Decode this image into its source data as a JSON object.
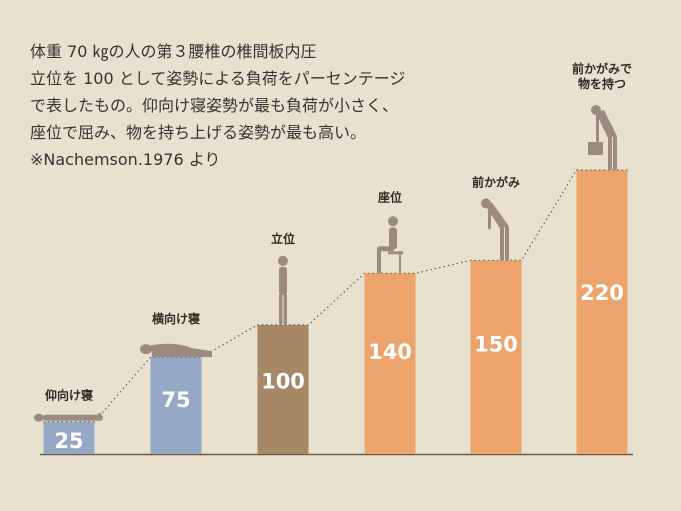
{
  "description": [
    "体重 70 ㎏の人の第３腰椎の椎間板内圧",
    "立位を 100 として姿勢による負荷をパーセンテージ",
    "で表したもの。仰向け寝姿勢が最も負荷が小さく、",
    "座位で屈み、物を持ち上げる姿勢が最も高い。",
    "※Nachemson.1976 より"
  ],
  "chart_data": {
    "type": "bar",
    "categories": [
      "仰向け寝",
      "横向け寝",
      "立位",
      "座位",
      "前かがみ",
      "前かがみで\n物を持つ"
    ],
    "category_lines": [
      [
        "仰向け寝"
      ],
      [
        "横向け寝"
      ],
      [
        "立位"
      ],
      [
        "座位"
      ],
      [
        "前かがみ"
      ],
      [
        "前かがみで",
        "物を持つ"
      ]
    ],
    "values": [
      25,
      75,
      100,
      140,
      150,
      220
    ],
    "value_labels": [
      "25",
      "75",
      "100",
      "140",
      "150",
      "220"
    ],
    "colors": [
      "#95a9c6",
      "#95a9c6",
      "#a68766",
      "#eda36c",
      "#eda36c",
      "#eda36c"
    ],
    "ylim": [
      0,
      220
    ],
    "grid": false,
    "legend": "none",
    "figure_color": "#9a8a80",
    "trend_line": "dotted"
  }
}
